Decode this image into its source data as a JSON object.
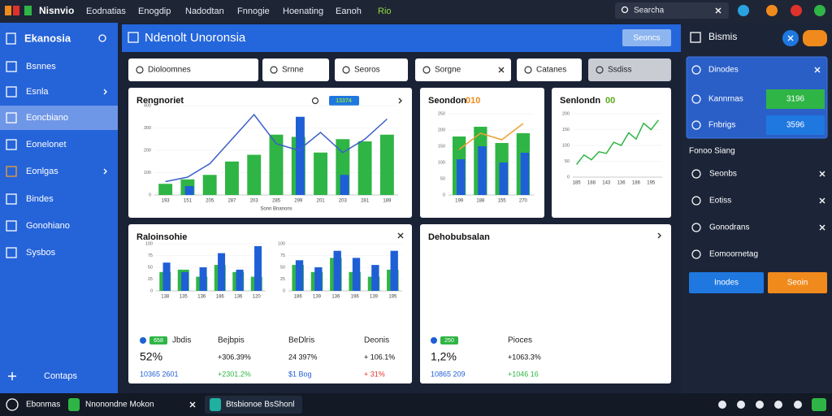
{
  "topbar": {
    "logo": "Nisnvio",
    "menu": [
      "Eodnatias",
      "Enogdip",
      "Nadodtan",
      "Fnnogie",
      "Hoenating",
      "Eanoh",
      "Rio"
    ],
    "search": "Searcha"
  },
  "sidebar": {
    "title": "Ekanosia",
    "items": [
      "Bsnnes",
      "Esnla",
      "Eoncbiano",
      "Eonelonet",
      "Eonlgas",
      "Bindes",
      "Gonohiano",
      "Sysbos"
    ],
    "selected": 2,
    "footer": "Contaps"
  },
  "header": {
    "title": "Ndenolt Unoronsia",
    "button": "Seoncs"
  },
  "filters": [
    "Dioloomnes",
    "Srnne",
    "Seoros",
    "Sorgne",
    "Catanes",
    "Ssdiss"
  ],
  "panels": [
    {
      "title": "Rengnoriet",
      "badge": "13374",
      "chart": {
        "type": "bar",
        "categories": [
          "193",
          "151",
          "205",
          "287",
          "203",
          "285",
          "299",
          "201",
          "203",
          "281",
          "189"
        ],
        "ylim": [
          0,
          400
        ],
        "yticks": [
          0,
          100,
          200,
          300,
          400
        ],
        "xlabel": "Sonn Bnanons",
        "series": [
          {
            "type": "bar",
            "color": "#2fb545",
            "values": [
              50,
              70,
              90,
              150,
              180,
              270,
              260,
              190,
              250,
              240,
              270
            ]
          },
          {
            "type": "bar",
            "color": "#1f5fd6",
            "values": [
              null,
              40,
              null,
              null,
              null,
              null,
              350,
              null,
              90,
              null,
              null
            ]
          },
          {
            "type": "line",
            "color": "#3a5fc8",
            "values": [
              60,
              80,
              140,
              250,
              360,
              230,
              200,
              280,
              190,
              250,
              340
            ]
          }
        ]
      }
    },
    {
      "title": "Seondon",
      "badge": "010",
      "chart": {
        "type": "bar",
        "categories": [
          "199",
          "188",
          "155",
          "270"
        ],
        "ylim": [
          0,
          250
        ],
        "yticks": [
          0,
          50,
          100,
          150,
          200,
          250
        ],
        "series": [
          {
            "type": "bar",
            "color": "#2fb545",
            "values": [
              180,
              210,
              160,
              190
            ]
          },
          {
            "type": "bar",
            "color": "#1f5fd6",
            "values": [
              110,
              150,
              100,
              130
            ]
          },
          {
            "type": "line",
            "color": "#f0a030",
            "values": [
              140,
              190,
              170,
              220
            ]
          }
        ]
      }
    },
    {
      "title": "Senlondn",
      "badge": "00",
      "chart": {
        "type": "line",
        "categories": [
          "185",
          null,
          "188",
          null,
          "143",
          null,
          "136",
          null,
          "186",
          null,
          "195",
          null
        ],
        "ylim": [
          0,
          200
        ],
        "yticks": [
          0,
          50,
          100,
          150,
          200
        ],
        "series": [
          {
            "type": "line",
            "color": "#2fb545",
            "values": [
              40,
              70,
              55,
              80,
              75,
              110,
              100,
              140,
              120,
              170,
              150,
              180
            ]
          }
        ]
      }
    },
    {
      "title": "Raloinsohie",
      "charts": [
        {
          "type": "bar",
          "categories": [
            "138",
            "135",
            "136",
            "186",
            "136",
            "120"
          ],
          "ylim": [
            0,
            100
          ],
          "yticks": [
            0,
            25,
            50,
            75,
            100
          ],
          "series": [
            {
              "type": "bar",
              "color": "#2fb545",
              "values": [
                40,
                45,
                30,
                55,
                40,
                30
              ]
            },
            {
              "type": "bar",
              "color": "#1f5fd6",
              "values": [
                60,
                40,
                50,
                80,
                45,
                95
              ]
            }
          ]
        },
        {
          "type": "bar",
          "categories": [
            "186",
            "139",
            "136",
            "196",
            "139",
            "195"
          ],
          "ylim": [
            0,
            100
          ],
          "yticks": [
            0,
            25,
            50,
            75,
            100
          ],
          "series": [
            {
              "type": "bar",
              "color": "#2fb545",
              "values": [
                55,
                40,
                70,
                40,
                30,
                45
              ]
            },
            {
              "type": "bar",
              "color": "#1f5fd6",
              "values": [
                65,
                50,
                85,
                70,
                55,
                85
              ]
            }
          ]
        }
      ],
      "stats": [
        {
          "label": "Jbdis",
          "badge": "658",
          "value": "52%",
          "sub": "10365 2601",
          "tone": "#1f5fd6"
        },
        {
          "label": "Bejbpis",
          "value": "+306.39%",
          "sub": "+2301.2%",
          "tone": "#2fb545"
        },
        {
          "label": "BeDlris",
          "value": "24 397%",
          "sub": "$1 Bog",
          "tone": "#1f5fd6"
        },
        {
          "label": "Deonis",
          "value": "+ 106.1%",
          "sub": "+ 31%",
          "tone": "#e03a2f"
        }
      ]
    },
    {
      "title": "Dehobubsalan",
      "stats": [
        {
          "label": "",
          "badge": "250",
          "value": "1,2%",
          "sub": "10865 209",
          "tone": "#1f5fd6"
        },
        {
          "label": "Pioces",
          "value": "+1063.3%",
          "sub": "+1046 16",
          "tone": "#2fb545"
        }
      ]
    }
  ],
  "right": {
    "title": "Bismis",
    "box": [
      {
        "label": "Dinodes"
      },
      {
        "label": "Kannrnas",
        "button": "3196",
        "color": "#2fb545"
      },
      {
        "label": "Fnbrigs",
        "button": "3596",
        "color": "#1f78e0"
      }
    ],
    "section": "Fonoo Siang",
    "items": [
      "Seonbs",
      "Eotiss",
      "Gonodrans",
      "Eomoornetag"
    ],
    "buttons": [
      {
        "label": "Inodes",
        "color": "#1f78e0"
      },
      {
        "label": "Seoin",
        "color": "#f08a1c"
      }
    ]
  },
  "taskbar": [
    "Ebonmas",
    "Nnonondne Mokon",
    "Btsbionoe BsShonl"
  ]
}
